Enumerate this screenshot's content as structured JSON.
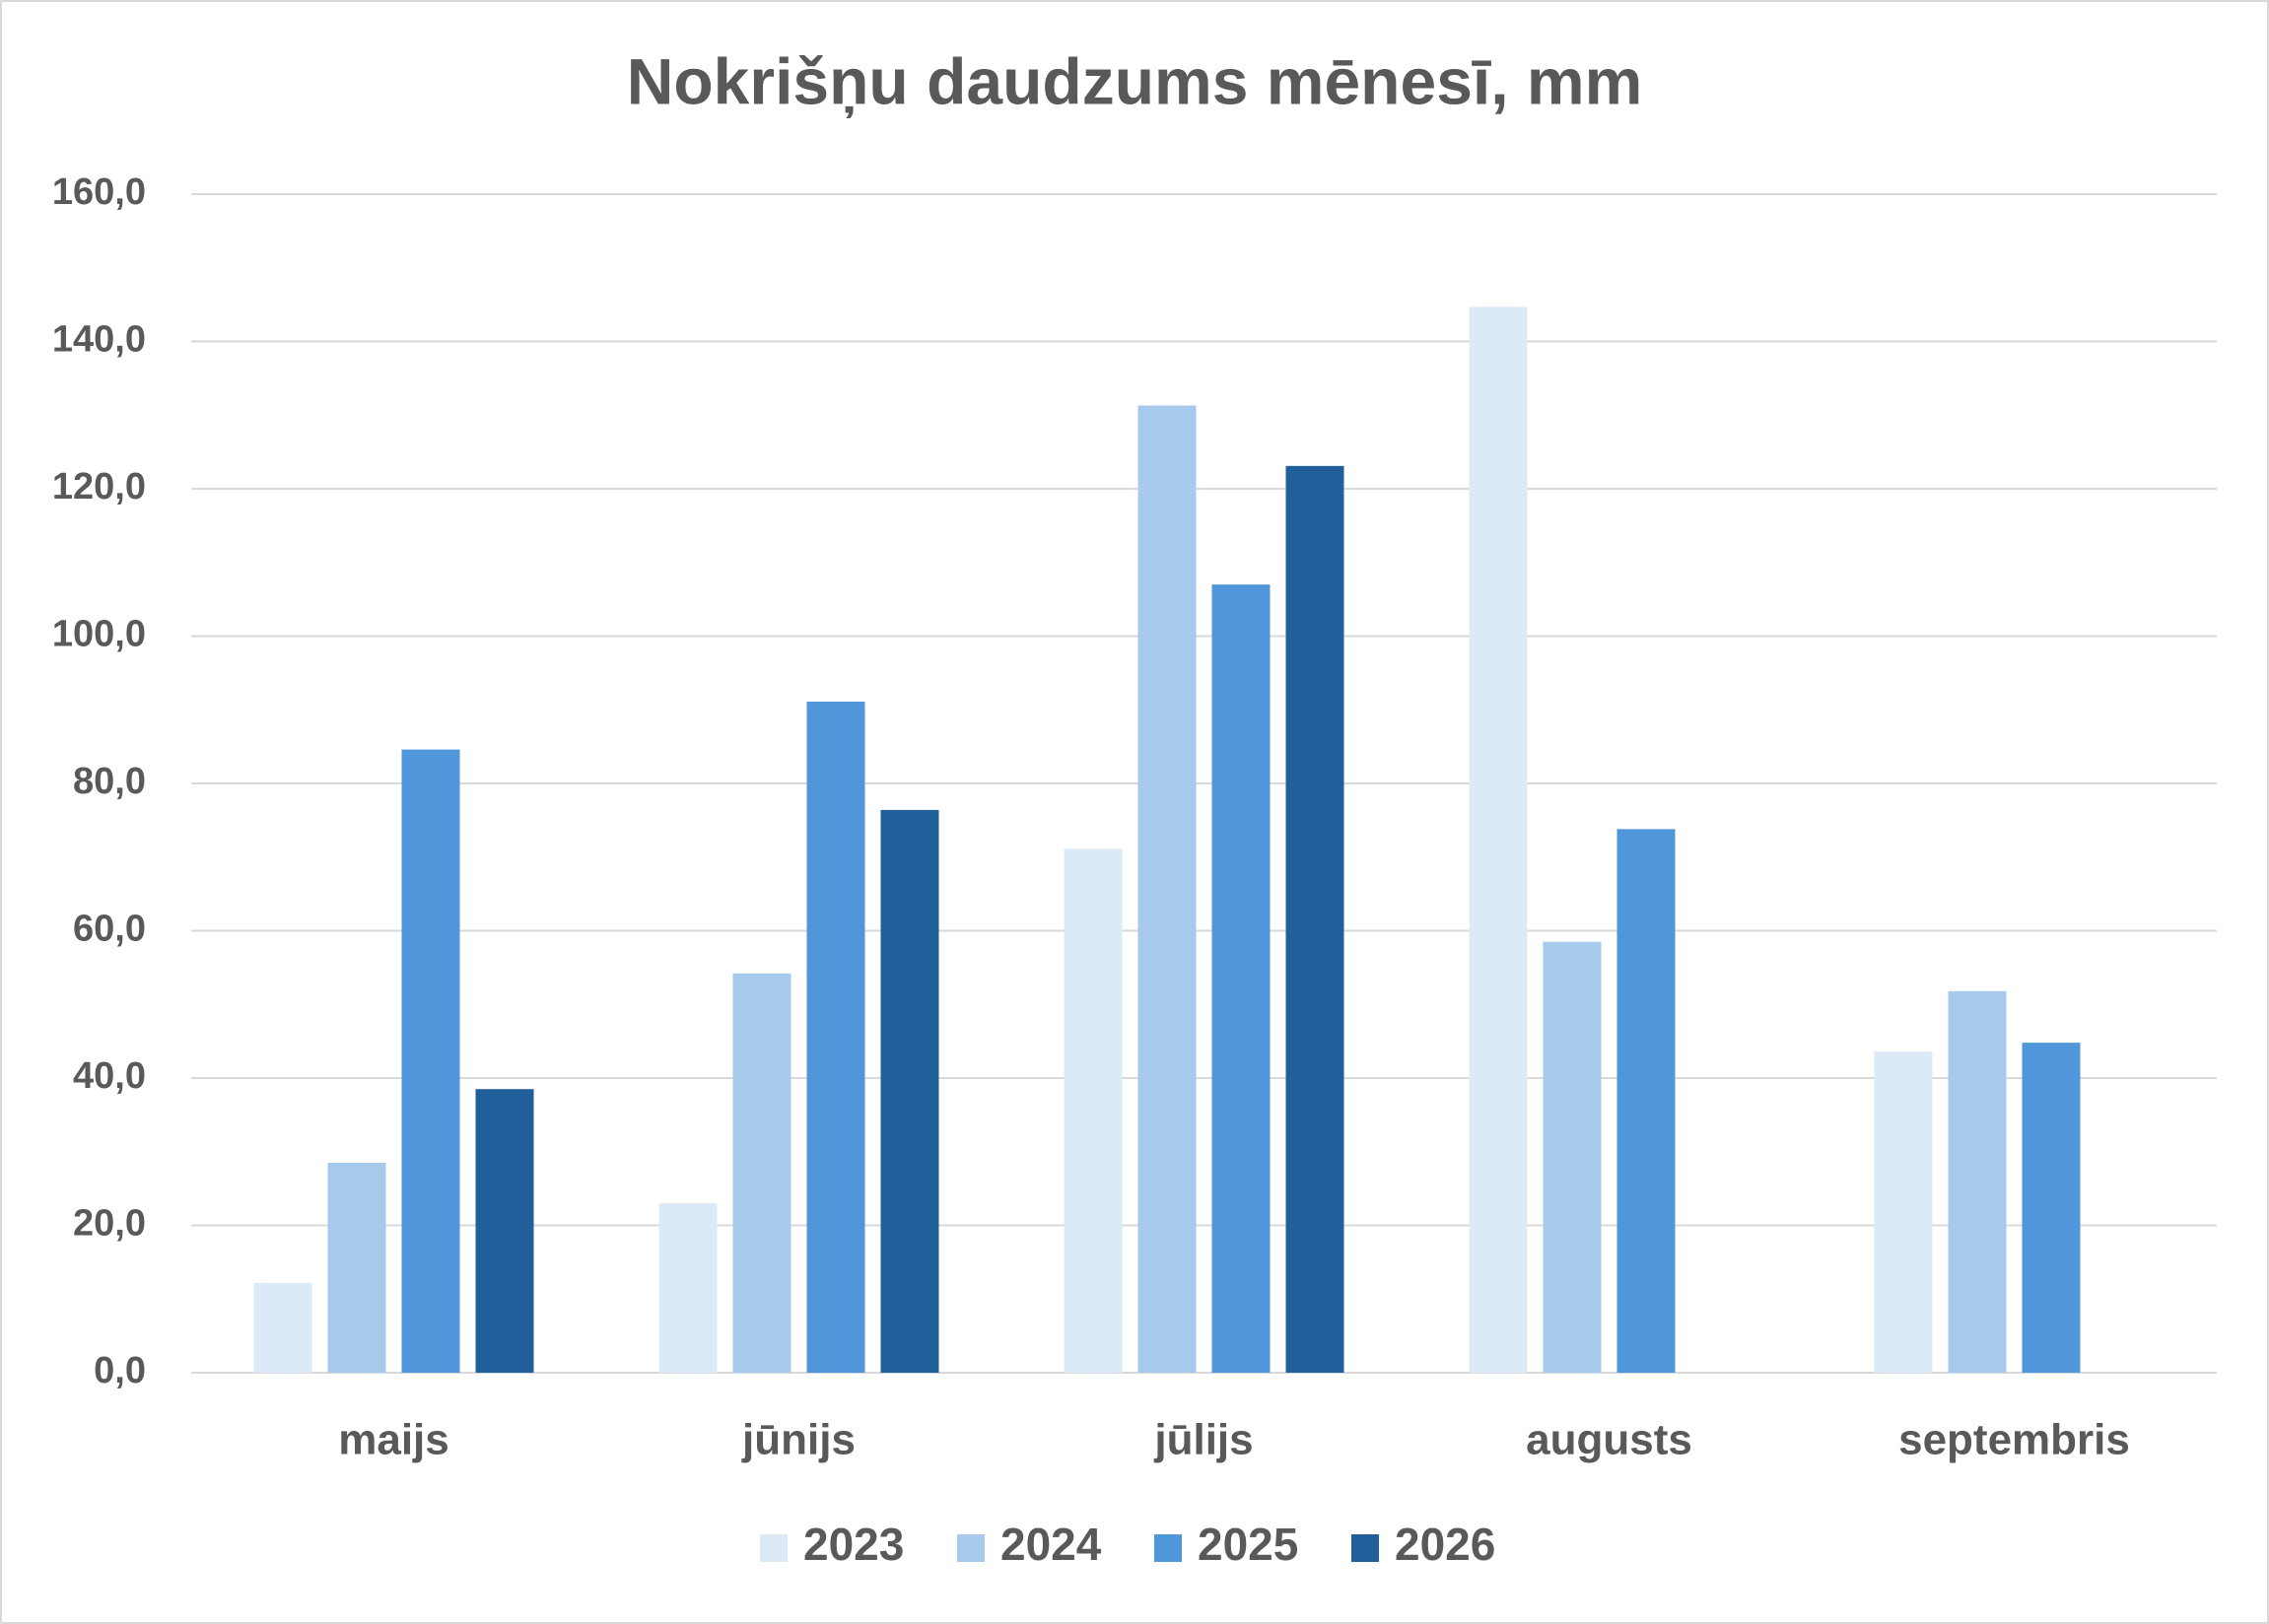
{
  "chart_data": {
    "type": "bar",
    "title": "Nokrišņu daudzums mēnesī, mm",
    "categories": [
      "maijs",
      "jūnijs",
      "jūlijs",
      "augusts",
      "septembris"
    ],
    "series": [
      {
        "name": "2023",
        "color": "#dce9f6",
        "values": [
          12.2,
          23.0,
          71.1,
          144.7,
          43.6
        ]
      },
      {
        "name": "2024",
        "color": "#a7c9ec",
        "values": [
          28.5,
          54.2,
          131.3,
          58.5,
          51.8
        ]
      },
      {
        "name": "2025",
        "color": "#5096da",
        "values": [
          84.6,
          91.1,
          107.0,
          73.8,
          44.8
        ]
      },
      {
        "name": "2026",
        "color": "#215f9a",
        "values": [
          38.5,
          76.4,
          123.1,
          null,
          null
        ]
      }
    ],
    "ylim": [
      0,
      160
    ],
    "yticks": [
      {
        "value": 0,
        "label": "0,0"
      },
      {
        "value": 20,
        "label": "20,0"
      },
      {
        "value": 40,
        "label": "40,0"
      },
      {
        "value": 60,
        "label": "60,0"
      },
      {
        "value": 80,
        "label": "80,0"
      },
      {
        "value": 100,
        "label": "100,0"
      },
      {
        "value": 120,
        "label": "120,0"
      },
      {
        "value": 140,
        "label": "140,0"
      },
      {
        "value": 160,
        "label": "160,0"
      }
    ],
    "grid": true,
    "legend": "bottom"
  }
}
